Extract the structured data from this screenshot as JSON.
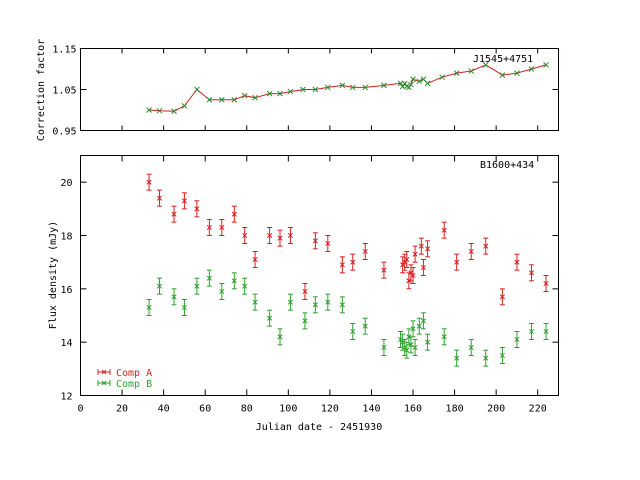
{
  "chart_data": [
    {
      "type": "line",
      "panel_label": "J1545+4751",
      "ylabel": "Correction factor",
      "xlim": [
        0,
        230
      ],
      "ylim": [
        0.95,
        1.15
      ],
      "yticks": [
        "0.95",
        "1.05",
        "1.15"
      ],
      "ytick_values": [
        0.95,
        1.05,
        1.15
      ],
      "grid": false,
      "series": [
        {
          "color": "#2e8b2e",
          "marker": "x",
          "x": [
            33,
            38,
            45,
            50,
            56,
            62,
            68,
            74,
            79,
            84,
            91,
            96,
            101,
            107,
            113,
            119,
            126,
            131,
            137,
            146,
            154,
            155,
            156,
            157,
            158,
            159,
            160,
            163,
            165,
            167,
            174,
            181,
            188,
            195,
            203,
            210,
            217,
            224
          ],
          "y": [
            1.0,
            0.998,
            0.997,
            1.01,
            1.05,
            1.025,
            1.025,
            1.025,
            1.035,
            1.03,
            1.04,
            1.04,
            1.045,
            1.05,
            1.05,
            1.055,
            1.06,
            1.055,
            1.055,
            1.06,
            1.065,
            1.057,
            1.065,
            1.058,
            1.055,
            1.062,
            1.075,
            1.07,
            1.075,
            1.065,
            1.08,
            1.09,
            1.095,
            1.11,
            1.085,
            1.09,
            1.1,
            1.11
          ]
        }
      ]
    },
    {
      "type": "scatter",
      "panel_label": "B1600+434",
      "xlabel": "Julian date - 2451930",
      "ylabel": "Flux density (mJy)",
      "xlim": [
        0,
        230
      ],
      "ylim": [
        12,
        21
      ],
      "xticks": [
        "0",
        "20",
        "40",
        "60",
        "80",
        "100",
        "120",
        "140",
        "160",
        "180",
        "200",
        "220"
      ],
      "xtick_values": [
        0,
        20,
        40,
        60,
        80,
        100,
        120,
        140,
        160,
        180,
        200,
        220
      ],
      "yticks": [
        "12",
        "14",
        "16",
        "18",
        "20"
      ],
      "ytick_values": [
        12,
        14,
        16,
        18,
        20
      ],
      "legend_position": "bottom-left",
      "grid": false,
      "series": [
        {
          "name": "Comp A",
          "color": "#d62020",
          "error": 0.3,
          "x": [
            33,
            38,
            45,
            50,
            56,
            62,
            68,
            74,
            79,
            84,
            91,
            96,
            101,
            108,
            113,
            119,
            126,
            131,
            137,
            146,
            155,
            156,
            157,
            158,
            159,
            160,
            161,
            164,
            165,
            167,
            175,
            181,
            188,
            195,
            203,
            210,
            217,
            224
          ],
          "y": [
            20.0,
            19.4,
            18.8,
            19.3,
            19.0,
            18.3,
            18.3,
            18.8,
            18.0,
            17.1,
            18.0,
            17.9,
            18.0,
            15.9,
            17.8,
            17.7,
            16.9,
            17.0,
            17.4,
            16.7,
            16.9,
            17.0,
            17.1,
            16.3,
            16.6,
            16.5,
            17.3,
            17.6,
            16.8,
            17.5,
            18.2,
            17.0,
            17.4,
            17.6,
            15.7,
            17.0,
            16.6,
            16.2
          ]
        },
        {
          "name": "Comp B",
          "color": "#2ea02e",
          "error": 0.3,
          "x": [
            33,
            38,
            45,
            50,
            56,
            62,
            68,
            74,
            79,
            84,
            91,
            96,
            101,
            108,
            113,
            119,
            126,
            131,
            137,
            146,
            154,
            155,
            156,
            157,
            158,
            159,
            160,
            161,
            163,
            165,
            167,
            175,
            181,
            188,
            195,
            203,
            210,
            217,
            224
          ],
          "y": [
            15.3,
            16.1,
            15.7,
            15.3,
            16.1,
            16.4,
            15.9,
            16.3,
            16.1,
            15.5,
            14.9,
            14.2,
            15.5,
            14.8,
            15.4,
            15.5,
            15.4,
            14.4,
            14.6,
            13.8,
            14.1,
            14.0,
            13.8,
            13.7,
            14.2,
            13.9,
            14.5,
            13.8,
            14.6,
            14.8,
            14.0,
            14.2,
            13.4,
            13.8,
            13.4,
            13.5,
            14.1,
            14.4,
            14.4
          ]
        }
      ]
    }
  ]
}
